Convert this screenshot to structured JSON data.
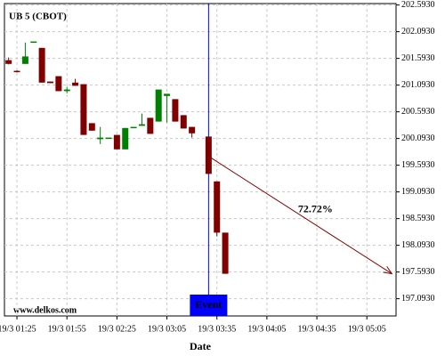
{
  "chart_data": {
    "type": "candlestick",
    "title": "UB 5 (CBOT)",
    "x_label": "Date",
    "watermark": "www.delkos.com",
    "categories": [
      null,
      "19/3 01:25",
      null,
      null,
      null,
      null,
      null,
      "19/3 01:55",
      null,
      null,
      null,
      null,
      null,
      "19/3 02:25",
      null,
      null,
      null,
      null,
      null,
      "19/3 03:05",
      null,
      null,
      null,
      null,
      null,
      "19/3 03:35",
      null,
      null,
      null,
      null,
      null,
      "19/3 04:05",
      null,
      null,
      null,
      null,
      null,
      "19/3 04:35",
      null,
      null,
      null,
      null,
      null,
      "19/3 05:05",
      null,
      null,
      null
    ],
    "open": [
      201.56,
      201.36,
      201.49,
      201.91,
      201.79,
      201.16,
      201.26,
      200.98,
      201.14,
      201.11,
      200.38,
      200.08,
      200.11,
      200.16,
      199.89,
      200.31,
      200.33,
      200.48,
      200.41,
      200.89,
      200.83,
      200.53,
      200.31,
      null,
      200.13,
      199.29,
      198.33,
      null,
      null,
      null,
      null,
      null,
      null,
      null,
      null,
      null,
      null,
      null,
      null,
      null,
      null,
      null,
      null,
      null,
      null,
      null,
      null
    ],
    "high": [
      201.61,
      201.37,
      201.89,
      201.91,
      201.79,
      201.16,
      201.26,
      201.06,
      201.21,
      201.11,
      200.38,
      200.31,
      200.11,
      200.16,
      200.29,
      200.31,
      200.56,
      200.48,
      201.01,
      200.93,
      200.83,
      200.53,
      200.31,
      null,
      200.13,
      199.29,
      198.33,
      null,
      null,
      null,
      null,
      null,
      null,
      null,
      null,
      null,
      null,
      null,
      null,
      null,
      null,
      null,
      null,
      null,
      null,
      null,
      null
    ],
    "low": [
      201.48,
      201.33,
      201.49,
      201.91,
      201.14,
      201.13,
      200.98,
      200.94,
      201.08,
      200.16,
      200.24,
      199.99,
      200.11,
      199.89,
      199.89,
      200.31,
      200.33,
      200.18,
      200.41,
      200.39,
      200.41,
      200.28,
      200.11,
      null,
      199.43,
      198.26,
      197.56,
      null,
      null,
      null,
      null,
      null,
      null,
      null,
      null,
      null,
      null,
      null,
      null,
      null,
      null,
      null,
      null,
      null,
      null,
      null,
      null
    ],
    "close": [
      201.49,
      201.34,
      201.63,
      201.91,
      201.14,
      201.13,
      200.98,
      201.01,
      201.08,
      200.16,
      200.24,
      200.11,
      200.11,
      199.89,
      200.29,
      200.31,
      200.36,
      200.18,
      201.01,
      200.93,
      200.41,
      200.28,
      200.19,
      null,
      199.43,
      198.33,
      197.56,
      null,
      null,
      null,
      null,
      null,
      null,
      null,
      null,
      null,
      null,
      null,
      null,
      null,
      null,
      null,
      null,
      null,
      null,
      null,
      null
    ],
    "up_color": "#008000",
    "down_color": "#800000",
    "ylim": [
      196.77,
      202.62
    ],
    "yticks": [
      {
        "value": 202.593,
        "label": "202.5930"
      },
      {
        "value": 202.093,
        "label": "202.0930"
      },
      {
        "value": 201.593,
        "label": "201.5930"
      },
      {
        "value": 201.093,
        "label": "201.0930"
      },
      {
        "value": 200.593,
        "label": "200.5930"
      },
      {
        "value": 200.093,
        "label": "200.0930"
      },
      {
        "value": 199.593,
        "label": "199.5930"
      },
      {
        "value": 199.093,
        "label": "199.0930"
      },
      {
        "value": 198.593,
        "label": "198.5930"
      },
      {
        "value": 198.093,
        "label": "198.0930"
      },
      {
        "value": 197.593,
        "label": "197.5930"
      },
      {
        "value": 197.093,
        "label": "197.0930"
      }
    ],
    "grid": true,
    "event": {
      "label": "Event",
      "category": 24,
      "color": "#0000ff"
    },
    "annotation": {
      "text": "72.72%",
      "color": "#800000",
      "from_category": 24,
      "from_value": 199.76,
      "to_category": 46,
      "to_value": 197.56
    }
  }
}
